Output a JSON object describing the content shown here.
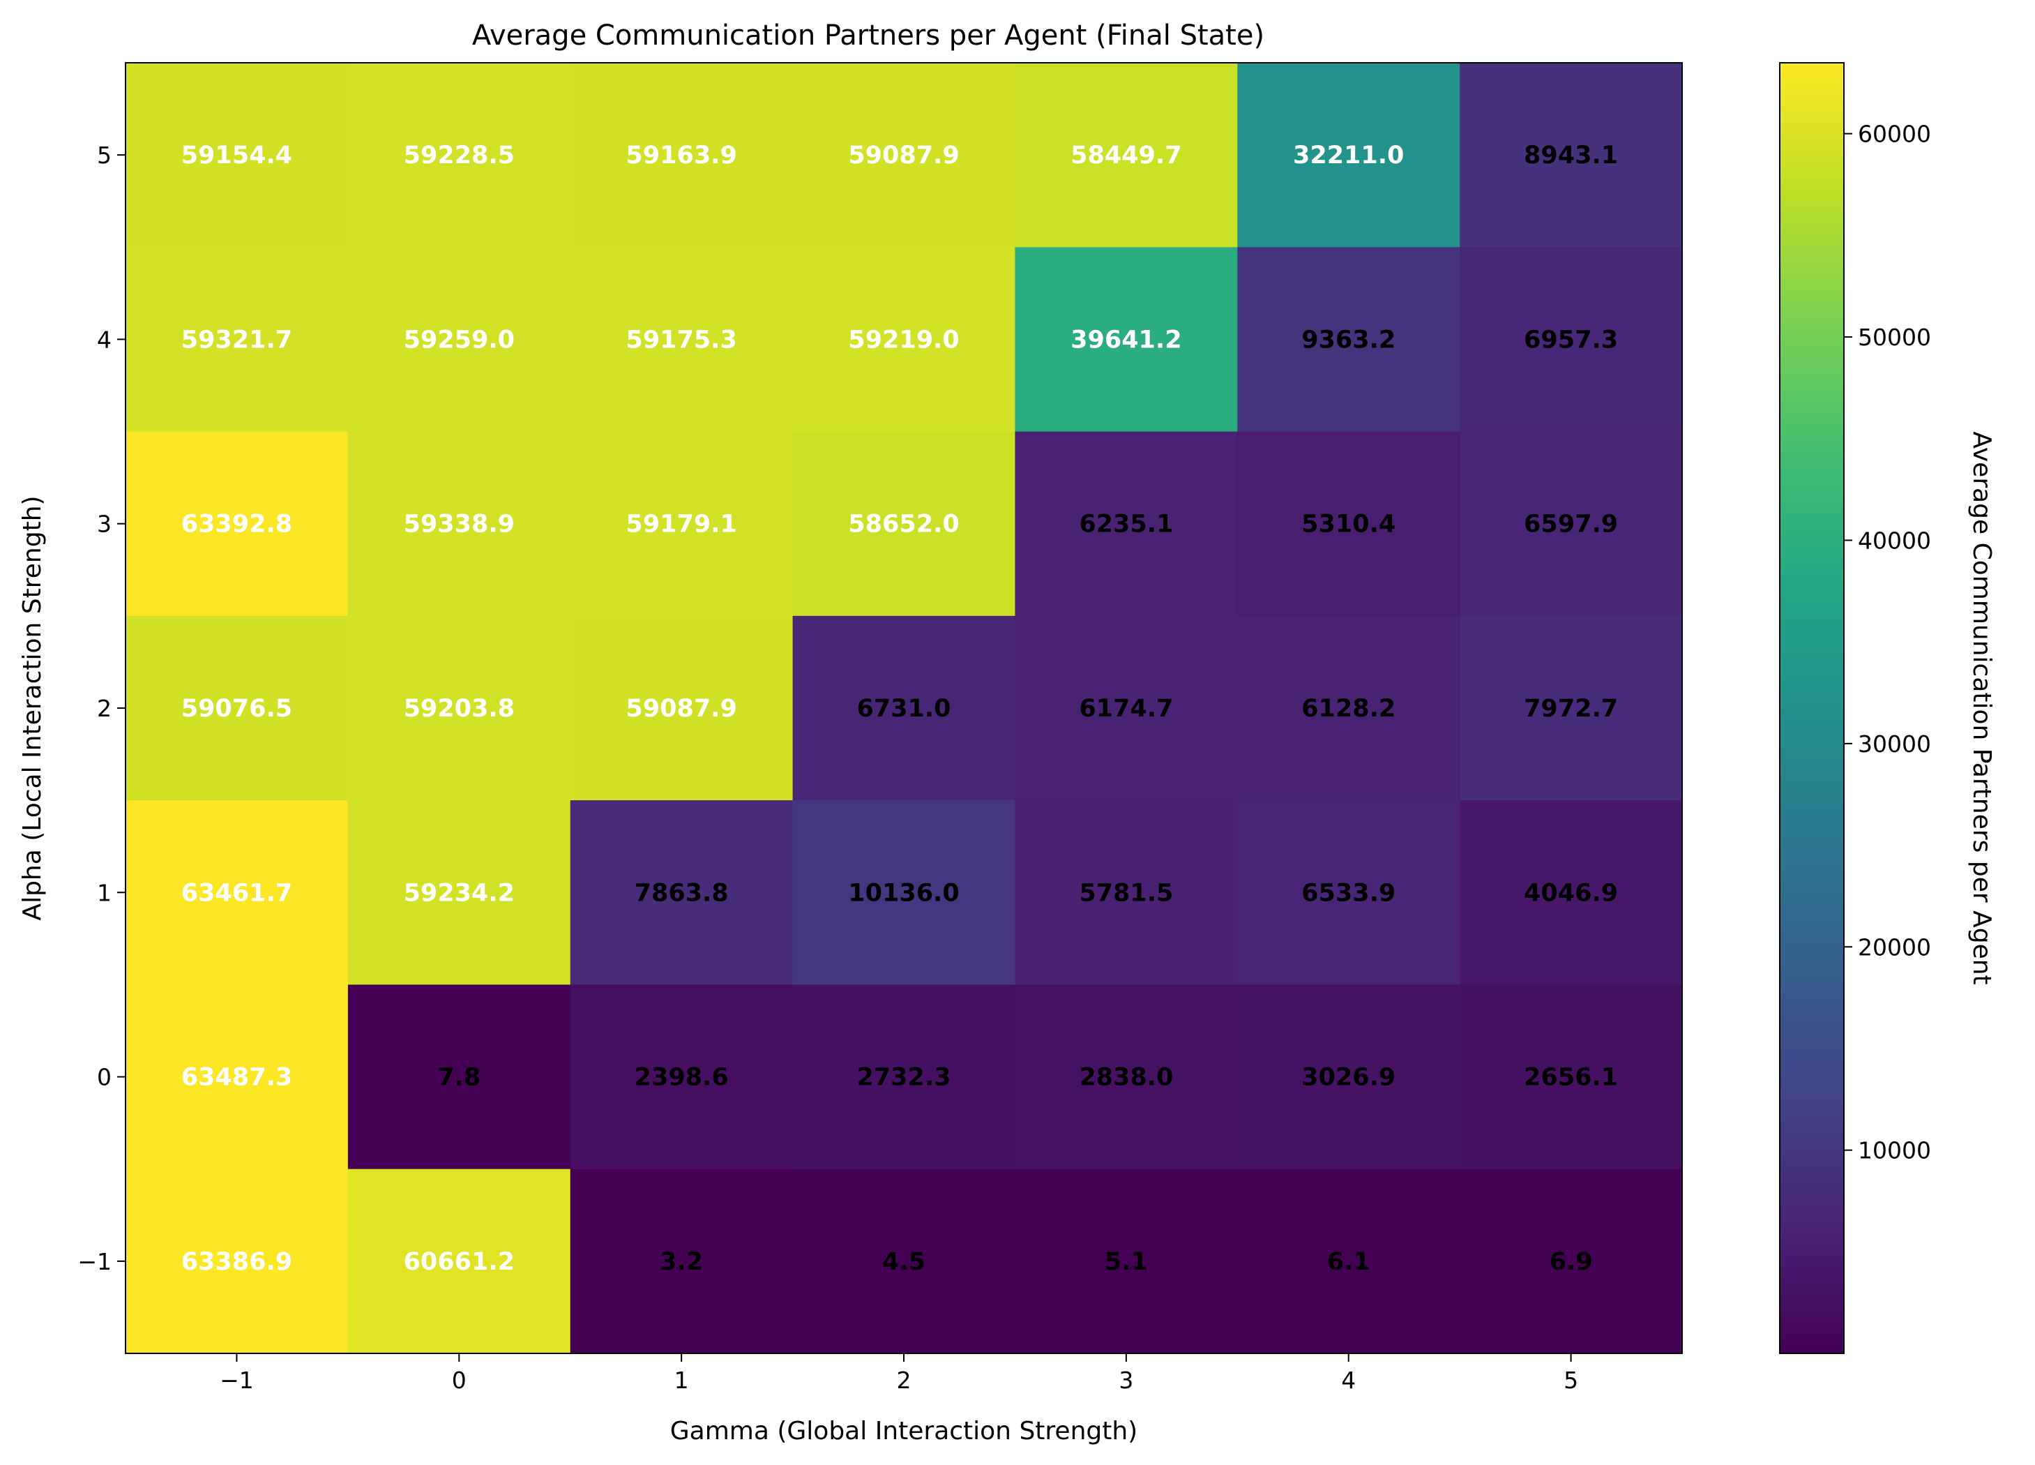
{
  "chart_data": {
    "type": "heatmap",
    "title": "Average Communication Partners per Agent (Final State)",
    "xlabel": "Gamma (Global Interaction Strength)",
    "ylabel": "Alpha (Local Interaction Strength)",
    "x": [
      "−1",
      "0",
      "1",
      "2",
      "3",
      "4",
      "5"
    ],
    "y": [
      "5",
      "4",
      "3",
      "2",
      "1",
      "0",
      "−1"
    ],
    "values": [
      [
        59154.4,
        59228.5,
        59163.9,
        59087.9,
        58449.7,
        32211.0,
        8943.1
      ],
      [
        59321.7,
        59259.0,
        59175.3,
        59219.0,
        39641.2,
        9363.2,
        6957.3
      ],
      [
        63392.8,
        59338.9,
        59179.1,
        58652.0,
        6235.1,
        5310.4,
        6597.9
      ],
      [
        59076.5,
        59203.8,
        59087.9,
        6731.0,
        6174.7,
        6128.2,
        7972.7
      ],
      [
        63461.7,
        59234.2,
        7863.8,
        10136.0,
        5781.5,
        6533.9,
        4046.9
      ],
      [
        63487.3,
        7.8,
        2398.6,
        2732.3,
        2838.0,
        3026.9,
        2656.1
      ],
      [
        63386.9,
        60661.2,
        3.2,
        4.5,
        5.1,
        6.1,
        6.9
      ]
    ],
    "colormap": "viridis",
    "colorbar": {
      "label": "Average Communication Partners per Agent",
      "min": 3.2,
      "max": 63487.3,
      "ticks": [
        10000,
        20000,
        30000,
        40000,
        50000,
        60000
      ]
    },
    "grid": false,
    "legend": "none"
  }
}
